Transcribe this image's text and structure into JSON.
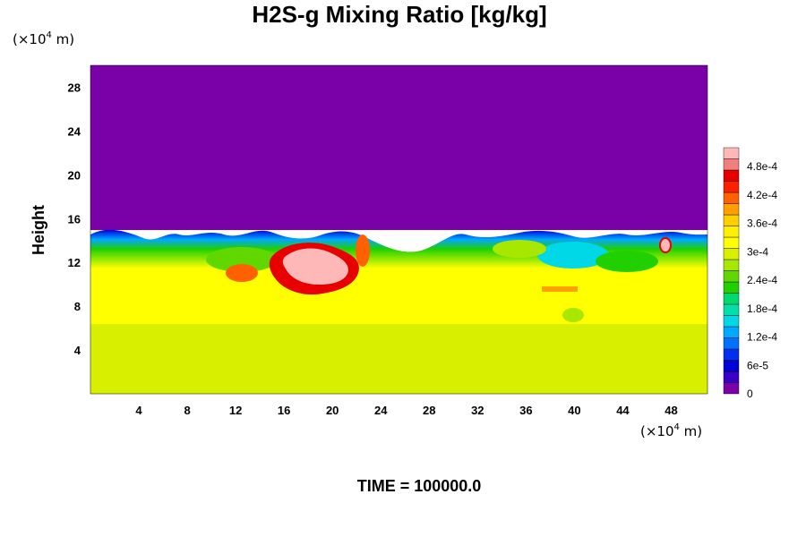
{
  "chart_data": {
    "type": "heatmap",
    "title": "H2S-g Mixing Ratio [kg/kg]",
    "ylabel": "Height",
    "x_unit": {
      "base": "(×10",
      "exp": "4",
      "tail": " m)"
    },
    "y_unit": {
      "base": "(×10",
      "exp": "4",
      "tail": " m)"
    },
    "xlim": [
      0,
      51
    ],
    "ylim": [
      0,
      30
    ],
    "x_ticks": [
      4,
      8,
      12,
      16,
      20,
      24,
      28,
      32,
      36,
      40,
      44,
      48
    ],
    "y_ticks": [
      4,
      8,
      12,
      16,
      20,
      24,
      28
    ],
    "annotation": "TIME = 100000.0",
    "colorbar": {
      "range": [
        0,
        0.00052
      ],
      "labels": [
        {
          "text": "0",
          "value": 0
        },
        {
          "text": "6e-5",
          "value": 6e-05
        },
        {
          "text": "1.2e-4",
          "value": 0.00012
        },
        {
          "text": "1.8e-4",
          "value": 0.00018
        },
        {
          "text": "2.4e-4",
          "value": 0.00024
        },
        {
          "text": "3e-4",
          "value": 0.0003
        },
        {
          "text": "3.6e-4",
          "value": 0.00036
        },
        {
          "text": "4.2e-4",
          "value": 0.00042
        },
        {
          "text": "4.8e-4",
          "value": 0.00048
        }
      ],
      "colors": [
        "#7a00a8",
        "#3a00c8",
        "#0000d8",
        "#0030ee",
        "#0070ff",
        "#00a8ff",
        "#00d8e8",
        "#00e0a8",
        "#00d870",
        "#20d000",
        "#60d800",
        "#a8e800",
        "#d8f000",
        "#ffff00",
        "#fff000",
        "#ffd000",
        "#ffa000",
        "#ff6000",
        "#ff2000",
        "#e80000",
        "#f08080",
        "#ffb8b8"
      ]
    },
    "field_regions": [
      {
        "name": "upper-layer",
        "x": [
          0,
          51
        ],
        "y": [
          15,
          30
        ],
        "value": 0
      },
      {
        "name": "mixed-layer",
        "x": [
          0,
          51
        ],
        "y": [
          12,
          15
        ],
        "value": 0.00028
      },
      {
        "name": "mid-layer",
        "x": [
          0,
          51
        ],
        "y": [
          6,
          12
        ],
        "value": 0.00036
      },
      {
        "name": "lower-layer",
        "x": [
          0,
          51
        ],
        "y": [
          0,
          6
        ],
        "value": 0.00033
      },
      {
        "name": "high-plume",
        "x": [
          15.5,
          21.5
        ],
        "y": [
          9.5,
          13.5
        ],
        "value": 0.0005
      }
    ]
  }
}
